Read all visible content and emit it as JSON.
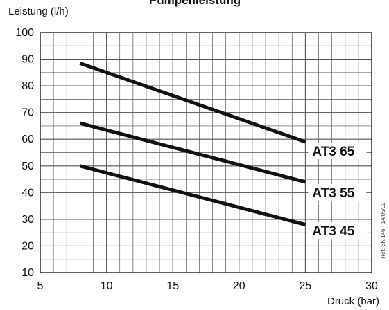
{
  "chart_data": {
    "type": "line",
    "title": "Pumpenleistung",
    "ylabel": "Leistung (l/h)",
    "xlabel": "Druck (bar)",
    "xlim": [
      5,
      30
    ],
    "ylim": [
      10,
      100
    ],
    "xticks": [
      5,
      10,
      15,
      20,
      25,
      30
    ],
    "yticks": [
      10,
      20,
      30,
      40,
      50,
      60,
      70,
      80,
      90,
      100
    ],
    "grid": true,
    "series": [
      {
        "name": "AT3 65",
        "x": [
          8,
          25
        ],
        "y": [
          88.5,
          59
        ]
      },
      {
        "name": "AT3 55",
        "x": [
          8,
          25
        ],
        "y": [
          66,
          44
        ]
      },
      {
        "name": "AT3 45",
        "x": [
          8,
          25
        ],
        "y": [
          50,
          28
        ]
      }
    ],
    "annotation": "Ref: SK 146 - 14/05/02",
    "line_color": "#111111",
    "grid_color": "#555555"
  }
}
